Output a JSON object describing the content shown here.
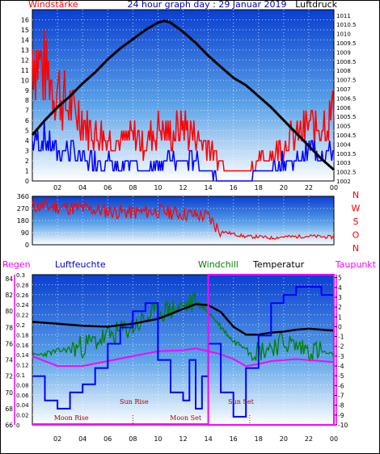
{
  "chart_data": [
    {
      "type": "line",
      "title": "24 hour graph day : 29 Januar 2019",
      "left_axis_label": "Windstärke",
      "right_axis_label": "Luftdruck",
      "x_ticks": [
        "02",
        "04",
        "06",
        "08",
        "10",
        "12",
        "14",
        "16",
        "18",
        "20",
        "22",
        "00"
      ],
      "y_left_ticks": [
        0,
        1,
        2,
        3,
        4,
        5,
        6,
        7,
        8,
        9,
        10,
        11,
        12,
        13,
        14,
        15,
        16
      ],
      "y_left_lim": [
        0,
        17
      ],
      "y_right_ticks": [
        "1002",
        "1002.5",
        "1003",
        "1003.5",
        "1004",
        "1004.5",
        "1005",
        "1005.5",
        "1006",
        "1006.5",
        "1007",
        "1007.5",
        "1008",
        "1008.5",
        "1009",
        "1009.5",
        "1010",
        "1010.5",
        "1011"
      ],
      "y_right_lim": [
        1002,
        1011.3
      ],
      "series": [
        {
          "color": "#000000",
          "axis": "right",
          "x": [
            0,
            1,
            2,
            3,
            4,
            5,
            6,
            7,
            8,
            9,
            10,
            10.5,
            11,
            12,
            13,
            14,
            15,
            16,
            17,
            18,
            19,
            20,
            21,
            22,
            23,
            24
          ],
          "values": [
            1004.5,
            1005.3,
            1006.0,
            1006.6,
            1007.3,
            1007.9,
            1008.6,
            1009.2,
            1009.7,
            1010.2,
            1010.6,
            1010.7,
            1010.6,
            1010.1,
            1009.5,
            1008.8,
            1008.2,
            1007.6,
            1007.2,
            1006.6,
            1006.0,
            1005.3,
            1004.6,
            1003.9,
            1003.2,
            1002.6
          ]
        },
        {
          "color": "#ff0000",
          "axis": "left",
          "label_kind": "gust",
          "x": [
            0,
            1,
            2,
            3,
            4,
            5,
            6,
            7,
            8,
            9,
            10,
            11,
            12,
            13,
            14,
            15,
            16,
            17,
            18,
            19,
            20,
            21,
            22,
            23,
            24
          ],
          "values": [
            14,
            12,
            10,
            8,
            7,
            5,
            5,
            4,
            5,
            4,
            6,
            5,
            6,
            5,
            4,
            2,
            1,
            1,
            2,
            3,
            4,
            5,
            6,
            6,
            8
          ]
        },
        {
          "color": "#0000ff",
          "axis": "left",
          "label_kind": "average",
          "x": [
            0,
            1,
            2,
            3,
            4,
            5,
            6,
            7,
            8,
            9,
            10,
            11,
            12,
            13,
            14,
            15,
            16,
            17,
            18,
            19,
            20,
            21,
            22,
            23,
            24
          ],
          "values": [
            4,
            4,
            3,
            3,
            2,
            2,
            2,
            1,
            2,
            1,
            2,
            2,
            2,
            2,
            1,
            0,
            0,
            0,
            1,
            1,
            2,
            2,
            3,
            3,
            3
          ]
        }
      ]
    },
    {
      "type": "scatter",
      "left_ticks": [
        0,
        90,
        180,
        270,
        360
      ],
      "right_labels": [
        "N",
        "W",
        "S",
        "O",
        "N"
      ],
      "ylim": [
        0,
        360
      ],
      "series": [
        {
          "color": "#ff0000",
          "x": [
            0,
            2,
            4,
            6,
            8,
            10,
            12,
            14,
            14.5,
            15,
            16,
            17,
            18,
            19,
            20,
            21,
            22,
            23,
            24
          ],
          "values": [
            290,
            280,
            270,
            250,
            240,
            250,
            230,
            210,
            150,
            100,
            80,
            60,
            60,
            50,
            60,
            60,
            65,
            60,
            55
          ]
        }
      ]
    },
    {
      "type": "line",
      "header_labels": {
        "rain": "Regen",
        "humidity": "Luftfeuchte",
        "windchill": "Windchill",
        "temperature": "Temperatur",
        "dewpoint": "Taupunkt"
      },
      "humidity_ticks": [
        66,
        68,
        70,
        72,
        74,
        76,
        78,
        80,
        82,
        84
      ],
      "humidity_lim": [
        66,
        84.5
      ],
      "rain_ticks": [
        "0",
        "0.02",
        "0.04",
        "0.06",
        "0.08",
        "0.1",
        "0.12",
        "0.14",
        "0.16",
        "0.18",
        "0.2",
        "0.22",
        "0.24",
        "0.26",
        "0.28",
        "0.3"
      ],
      "rain_lim": [
        0,
        0.3
      ],
      "temp_ticks": [
        -10,
        -9,
        -8,
        -7,
        -6,
        -5,
        -4,
        -3,
        -2,
        -1,
        0,
        1,
        2,
        3,
        4,
        5
      ],
      "temp_lim": [
        -10,
        5.3
      ],
      "annotations": [
        "Moon Rise",
        "Sun Rise",
        "Moon Set",
        "Sun Set"
      ],
      "series": [
        {
          "color": "#000000",
          "axis": "temp",
          "x": [
            0,
            2,
            4,
            6,
            8,
            10,
            12,
            13,
            14,
            15,
            16,
            17,
            18,
            19,
            20,
            21,
            22,
            23,
            24
          ],
          "values": [
            0.5,
            0.3,
            0.1,
            0.0,
            0.3,
            0.8,
            1.8,
            2.3,
            2.2,
            1.5,
            0,
            -0.8,
            -0.8,
            -0.6,
            -0.5,
            -0.3,
            -0.2,
            -0.3,
            -0.4
          ]
        },
        {
          "color": "#008000",
          "axis": "temp",
          "x": [
            0,
            2,
            4,
            6,
            8,
            10,
            12,
            13,
            14,
            15,
            16,
            17,
            18,
            19,
            20,
            21,
            22,
            23,
            24
          ],
          "values": [
            -3.0,
            -2.5,
            -2.0,
            -1.0,
            0,
            1.5,
            2.0,
            2.5,
            1.5,
            0,
            -1.5,
            -2.0,
            -2.5,
            -2.0,
            -1.5,
            -2.0,
            -2.3,
            -2.5,
            -3.0
          ]
        },
        {
          "color": "#ff00ff",
          "axis": "temp",
          "x": [
            0,
            2,
            4,
            6,
            8,
            10,
            12,
            13,
            14,
            15,
            16,
            17,
            18,
            19,
            20,
            21,
            22,
            23,
            24
          ],
          "values": [
            -3.0,
            -4.0,
            -4.0,
            -3.5,
            -3.0,
            -2.5,
            -2.4,
            -2.2,
            -2.5,
            -2.8,
            -3.3,
            -4.0,
            -3.8,
            -3.5,
            -3.4,
            -3.3,
            -3.4,
            -3.5,
            -3.6
          ]
        },
        {
          "color": "#0000ff",
          "axis": "humidity",
          "x": [
            0,
            1,
            2,
            3,
            4,
            5,
            6,
            7,
            8,
            9,
            10,
            11,
            12,
            12.5,
            13,
            13.5,
            14,
            15,
            16,
            17,
            18,
            19,
            20,
            21,
            22,
            23,
            24
          ],
          "values": [
            72,
            69,
            68,
            70,
            71,
            73,
            76,
            78,
            80,
            81,
            74,
            70,
            69,
            74,
            68,
            72,
            76,
            70,
            67,
            73,
            77,
            81,
            82,
            83,
            83,
            82,
            81
          ]
        },
        {
          "color": "#ff00ff",
          "axis": "rain",
          "x": [
            0,
            14,
            14,
            24
          ],
          "values": [
            0.3,
            0.3,
            0.3,
            0.3
          ]
        }
      ]
    }
  ]
}
